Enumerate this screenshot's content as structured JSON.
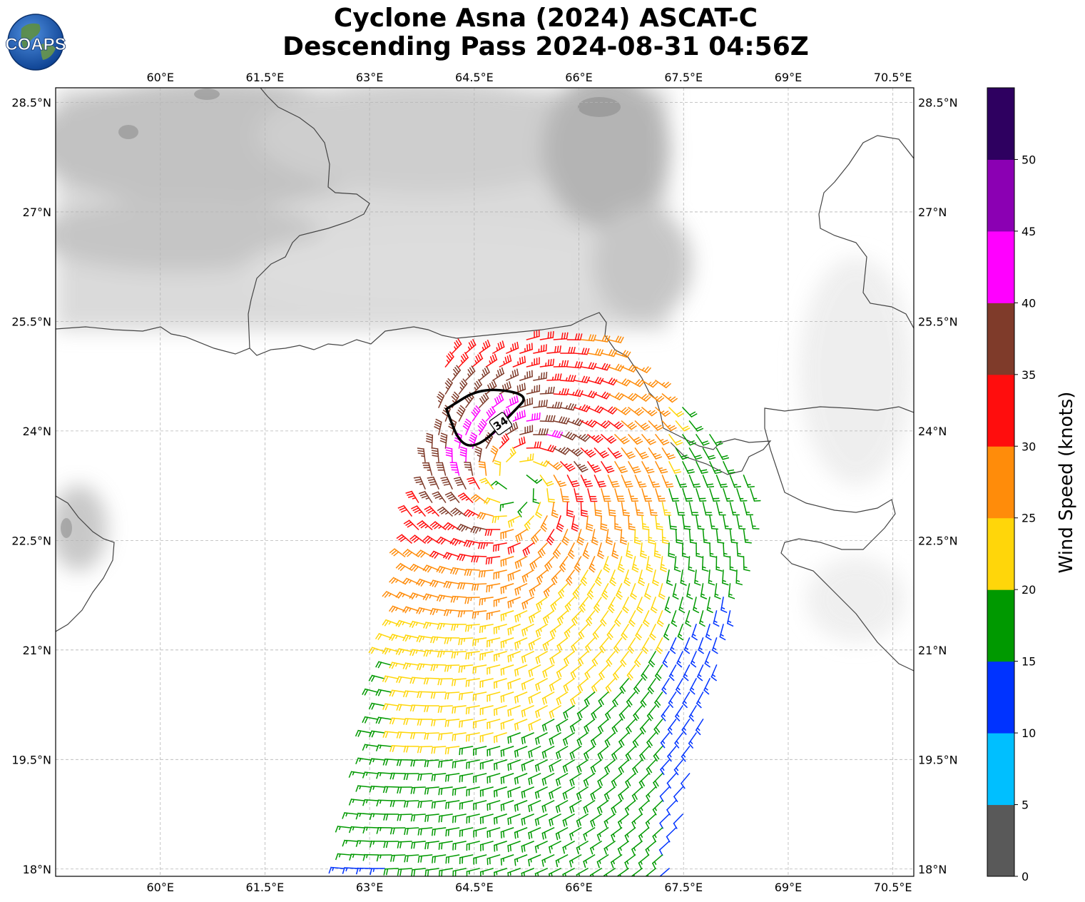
{
  "title": {
    "line1": "Cyclone Asna (2024) ASCAT-C",
    "line2": "Descending Pass 2024-08-31 04:56Z"
  },
  "logo": {
    "text": "COAPS",
    "icon": "globe-icon"
  },
  "map": {
    "lon_range": [
      58.5,
      70.8
    ],
    "lat_range": [
      17.9,
      28.7
    ],
    "lon_ticks": [
      {
        "value": 60.0,
        "label": "60°E"
      },
      {
        "value": 61.5,
        "label": "61.5°E"
      },
      {
        "value": 63.0,
        "label": "63°E"
      },
      {
        "value": 64.5,
        "label": "64.5°E"
      },
      {
        "value": 66.0,
        "label": "66°E"
      },
      {
        "value": 67.5,
        "label": "67.5°E"
      },
      {
        "value": 69.0,
        "label": "69°E"
      },
      {
        "value": 70.5,
        "label": "70.5°E"
      }
    ],
    "lat_ticks": [
      {
        "value": 28.5,
        "label": "28.5°N"
      },
      {
        "value": 27.0,
        "label": "27°N"
      },
      {
        "value": 25.5,
        "label": "25.5°N"
      },
      {
        "value": 24.0,
        "label": "24°N"
      },
      {
        "value": 22.5,
        "label": "22.5°N"
      },
      {
        "value": 21.0,
        "label": "21°N"
      },
      {
        "value": 19.5,
        "label": "19.5°N"
      },
      {
        "value": 18.0,
        "label": "18°N"
      }
    ],
    "grid": true,
    "storm_center": {
      "lon": 65.1,
      "lat": 23.3
    },
    "contour_34kt": {
      "label": "34",
      "points": [
        [
          64.1,
          24.3
        ],
        [
          64.6,
          24.6
        ],
        [
          65.3,
          24.5
        ],
        [
          65.05,
          24.25
        ],
        [
          64.6,
          23.8
        ],
        [
          64.3,
          23.8
        ],
        [
          64.1,
          24.3
        ]
      ]
    },
    "swath": {
      "polygon": [
        [
          64.0,
          25.2
        ],
        [
          66.4,
          25.3
        ],
        [
          67.3,
          24.6
        ],
        [
          68.6,
          23.2
        ],
        [
          67.3,
          18.0
        ],
        [
          62.6,
          18.0
        ],
        [
          63.6,
          22.9
        ],
        [
          64.0,
          24.4
        ]
      ]
    }
  },
  "colorbar": {
    "label": "Wind Speed (knots)",
    "ticks": [
      "0",
      "5",
      "10",
      "15",
      "20",
      "25",
      "30",
      "35",
      "40",
      "45",
      "50"
    ],
    "bins": [
      {
        "from": 0,
        "to": 5,
        "color": "#595959"
      },
      {
        "from": 5,
        "to": 10,
        "color": "#00bfff"
      },
      {
        "from": 10,
        "to": 15,
        "color": "#0033ff"
      },
      {
        "from": 15,
        "to": 20,
        "color": "#009900"
      },
      {
        "from": 20,
        "to": 25,
        "color": "#ffd60a"
      },
      {
        "from": 25,
        "to": 30,
        "color": "#ff8c0a"
      },
      {
        "from": 30,
        "to": 35,
        "color": "#ff0d0d"
      },
      {
        "from": 35,
        "to": 40,
        "color": "#7f3b2a"
      },
      {
        "from": 40,
        "to": 45,
        "color": "#ff00ff"
      },
      {
        "from": 45,
        "to": 50,
        "color": "#8b00b3"
      },
      {
        "from": 50,
        "to": 55,
        "color": "#2e0060"
      }
    ]
  }
}
